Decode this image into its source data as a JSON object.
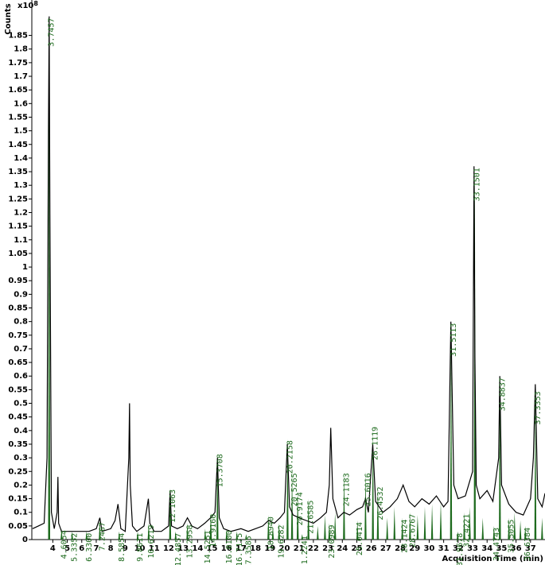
{
  "chart_data": {
    "type": "line",
    "y_label": "Counts",
    "y_multiplier": {
      "base": "x10",
      "exponent": "8"
    },
    "x_label": "Acquisition Time (min)",
    "xlim": [
      2.55,
      38.0
    ],
    "ylim": [
      0,
      1.98
    ],
    "xticks": [
      4,
      5,
      6,
      7,
      8,
      9,
      10,
      11,
      12,
      13,
      14,
      15,
      16,
      17,
      18,
      19,
      20,
      21,
      22,
      23,
      24,
      25,
      26,
      27,
      28,
      29,
      30,
      31,
      32,
      33,
      34,
      35,
      36,
      37
    ],
    "yticks": [
      0,
      0.05,
      0.1,
      0.15,
      0.2,
      0.25,
      0.3,
      0.35,
      0.4,
      0.45,
      0.5,
      0.55,
      0.6,
      0.65,
      0.7,
      0.75,
      0.8,
      0.85,
      0.9,
      0.95,
      1,
      1.05,
      1.1,
      1.15,
      1.2,
      1.25,
      1.3,
      1.35,
      1.4,
      1.45,
      1.5,
      1.55,
      1.6,
      1.65,
      1.7,
      1.75,
      1.8,
      1.85
    ],
    "tic": {
      "color": "#000000",
      "x": [
        2.6,
        3.0,
        3.4,
        3.6,
        3.7,
        3.75,
        3.8,
        3.9,
        4.1,
        4.3,
        4.35,
        4.4,
        4.6,
        5.0,
        5.5,
        6.0,
        6.5,
        7.0,
        7.25,
        7.4,
        8.0,
        8.3,
        8.5,
        8.7,
        9.0,
        9.25,
        9.3,
        9.35,
        9.5,
        9.8,
        10.3,
        10.6,
        10.7,
        11.0,
        11.5,
        12.0,
        12.1,
        12.2,
        12.6,
        13.0,
        13.3,
        13.6,
        14.0,
        14.5,
        14.9,
        15.2,
        15.37,
        15.5,
        15.8,
        16.3,
        17.0,
        17.5,
        18.0,
        18.5,
        18.9,
        19.3,
        19.7,
        20.0,
        20.2,
        20.35,
        20.6,
        21.0,
        21.5,
        22.0,
        22.5,
        22.9,
        23.1,
        23.2,
        23.35,
        23.7,
        24.1,
        24.5,
        25.0,
        25.4,
        25.6,
        25.8,
        26.1,
        26.3,
        26.8,
        27.3,
        27.8,
        28.2,
        28.6,
        29.0,
        29.5,
        30.0,
        30.5,
        31.0,
        31.3,
        31.5,
        31.7,
        32.0,
        32.5,
        33.0,
        33.1,
        33.15,
        33.25,
        33.5,
        34.0,
        34.4,
        34.8,
        34.88,
        35.0,
        35.5,
        36.0,
        36.5,
        37.0,
        37.2,
        37.33,
        37.5,
        37.8,
        38.0
      ],
      "values": [
        0.04,
        0.05,
        0.06,
        0.3,
        1.5,
        1.92,
        1.2,
        0.1,
        0.04,
        0.1,
        0.23,
        0.06,
        0.03,
        0.03,
        0.03,
        0.03,
        0.03,
        0.04,
        0.08,
        0.03,
        0.04,
        0.07,
        0.13,
        0.04,
        0.03,
        0.3,
        0.5,
        0.2,
        0.05,
        0.03,
        0.05,
        0.15,
        0.06,
        0.03,
        0.03,
        0.05,
        0.18,
        0.05,
        0.04,
        0.05,
        0.08,
        0.05,
        0.04,
        0.06,
        0.08,
        0.1,
        0.3,
        0.08,
        0.04,
        0.03,
        0.04,
        0.03,
        0.04,
        0.05,
        0.07,
        0.06,
        0.08,
        0.1,
        0.35,
        0.12,
        0.09,
        0.08,
        0.07,
        0.06,
        0.08,
        0.1,
        0.2,
        0.41,
        0.15,
        0.08,
        0.1,
        0.09,
        0.11,
        0.12,
        0.15,
        0.1,
        0.35,
        0.14,
        0.1,
        0.12,
        0.15,
        0.2,
        0.14,
        0.12,
        0.15,
        0.13,
        0.16,
        0.12,
        0.14,
        0.8,
        0.2,
        0.15,
        0.16,
        0.25,
        1.37,
        0.7,
        0.2,
        0.15,
        0.18,
        0.14,
        0.3,
        0.6,
        0.2,
        0.13,
        0.1,
        0.09,
        0.15,
        0.3,
        0.57,
        0.15,
        0.12,
        0.17
      ]
    },
    "peaks": {
      "color": "#1e6b1e",
      "x": [
        3.7457,
        4.6054,
        5.3352,
        6.33,
        7.2467,
        8.5854,
        9.8611,
        10.6219,
        12.1063,
        12.4857,
        13.2958,
        14.5251,
        14.916,
        15.3708,
        16.01,
        16.7175,
        17.3585,
        18.894,
        19.6282,
        20.2158,
        20.5265,
        20.9174,
        21.6585,
        21.2241,
        23.0989,
        24.1183,
        25.0414,
        25.6016,
        26.1119,
        26.4532,
        28.1424,
        28.6767,
        31.5113,
        31.9678,
        32.4221,
        33.1501,
        34.4743,
        34.8837,
        35.5055,
        36.6384,
        37.3353,
        19.2,
        22.3,
        22.8,
        23.5,
        27.1,
        27.6,
        29.2,
        29.7,
        30.2,
        30.8,
        32.8,
        33.7,
        35.9,
        36.3,
        37.8
      ],
      "values": [
        1.92,
        0.04,
        0.03,
        0.03,
        0.07,
        0.03,
        0.03,
        0.06,
        0.19,
        0.03,
        0.06,
        0.04,
        0.1,
        0.32,
        0.04,
        0.03,
        0.02,
        0.09,
        0.06,
        0.37,
        0.25,
        0.18,
        0.15,
        0.02,
        0.06,
        0.25,
        0.07,
        0.25,
        0.42,
        0.2,
        0.08,
        0.1,
        0.8,
        0.03,
        0.1,
        1.37,
        0.05,
        0.6,
        0.08,
        0.05,
        0.55,
        0.05,
        0.05,
        0.09,
        0.1,
        0.08,
        0.12,
        0.09,
        0.12,
        0.13,
        0.14,
        0.12,
        0.08,
        0.1,
        0.07,
        0.08
      ],
      "labels": [
        "3.7457",
        "4.6054",
        "5.3352",
        "6.3300",
        "7.2467",
        "8.5854",
        "9.8611",
        "10.6219",
        "12.1063",
        "12.4857",
        "13.2958",
        "14.5251",
        "14.9160",
        "15.3708",
        "16.0100",
        "16.7175",
        "17.3585",
        "18.8940",
        "19.6282",
        "20.2158",
        "20.5265",
        "20.9174",
        "21.6585",
        "21.2241",
        "23.0989",
        "24.1183",
        "25.0414",
        "25.6016",
        "26.1119",
        "26.4532",
        "28.1424",
        "28.6767",
        "31.5113",
        "31.9678",
        "32.4221",
        "33.1501",
        "34.4743",
        "34.8837",
        "35.5055",
        "36.6384",
        "37.3353",
        null,
        null,
        null,
        null,
        null,
        null,
        null,
        null,
        null,
        null,
        null,
        null,
        null,
        null,
        null
      ]
    }
  }
}
